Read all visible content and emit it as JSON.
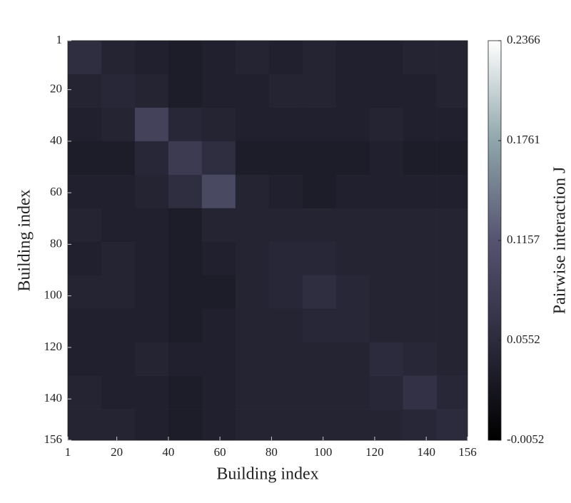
{
  "chart_data": {
    "type": "heatmap",
    "xlabel": "Building index",
    "ylabel": "Building index",
    "colorbar_label": "Pairwise interaction J",
    "x_edges": [
      1,
      14,
      27,
      40,
      53,
      66,
      79,
      92,
      105,
      118,
      131,
      144,
      156
    ],
    "y_edges": [
      1,
      14,
      27,
      40,
      53,
      66,
      79,
      92,
      105,
      118,
      131,
      144,
      156
    ],
    "values": [
      [
        0.06,
        0.045,
        0.04,
        0.035,
        0.04,
        0.045,
        0.04,
        0.045,
        0.04,
        0.04,
        0.045,
        0.045
      ],
      [
        0.045,
        0.05,
        0.045,
        0.035,
        0.04,
        0.04,
        0.045,
        0.045,
        0.04,
        0.04,
        0.04,
        0.045
      ],
      [
        0.04,
        0.045,
        0.09,
        0.05,
        0.045,
        0.04,
        0.04,
        0.04,
        0.04,
        0.045,
        0.04,
        0.04
      ],
      [
        0.035,
        0.035,
        0.05,
        0.08,
        0.06,
        0.035,
        0.035,
        0.035,
        0.035,
        0.04,
        0.035,
        0.035
      ],
      [
        0.04,
        0.04,
        0.045,
        0.06,
        0.1,
        0.045,
        0.04,
        0.035,
        0.04,
        0.04,
        0.04,
        0.04
      ],
      [
        0.045,
        0.04,
        0.04,
        0.035,
        0.045,
        0.045,
        0.045,
        0.045,
        0.045,
        0.045,
        0.045,
        0.045
      ],
      [
        0.04,
        0.045,
        0.04,
        0.035,
        0.04,
        0.045,
        0.05,
        0.05,
        0.045,
        0.045,
        0.045,
        0.045
      ],
      [
        0.045,
        0.045,
        0.04,
        0.035,
        0.035,
        0.045,
        0.05,
        0.06,
        0.05,
        0.045,
        0.045,
        0.045
      ],
      [
        0.04,
        0.04,
        0.04,
        0.035,
        0.04,
        0.045,
        0.045,
        0.05,
        0.05,
        0.045,
        0.045,
        0.045
      ],
      [
        0.04,
        0.04,
        0.045,
        0.04,
        0.04,
        0.045,
        0.045,
        0.045,
        0.045,
        0.055,
        0.05,
        0.045
      ],
      [
        0.045,
        0.04,
        0.04,
        0.035,
        0.04,
        0.045,
        0.045,
        0.045,
        0.045,
        0.05,
        0.065,
        0.05
      ],
      [
        0.045,
        0.045,
        0.04,
        0.035,
        0.04,
        0.045,
        0.045,
        0.045,
        0.045,
        0.045,
        0.05,
        0.055
      ]
    ],
    "xlim": [
      1,
      156
    ],
    "ylim": [
      1,
      156
    ],
    "xticks": [
      1,
      20,
      40,
      60,
      80,
      100,
      120,
      140,
      156
    ],
    "yticks": [
      1,
      20,
      40,
      60,
      80,
      100,
      120,
      140,
      156
    ],
    "clim": [
      -0.0052,
      0.2366
    ],
    "cticks": [
      -0.0052,
      0.0552,
      0.1157,
      0.1761,
      0.2366
    ],
    "colormap": [
      "#000000",
      "#2c2b3d",
      "#55536f",
      "#8fa6ab",
      "#ffffff"
    ]
  }
}
